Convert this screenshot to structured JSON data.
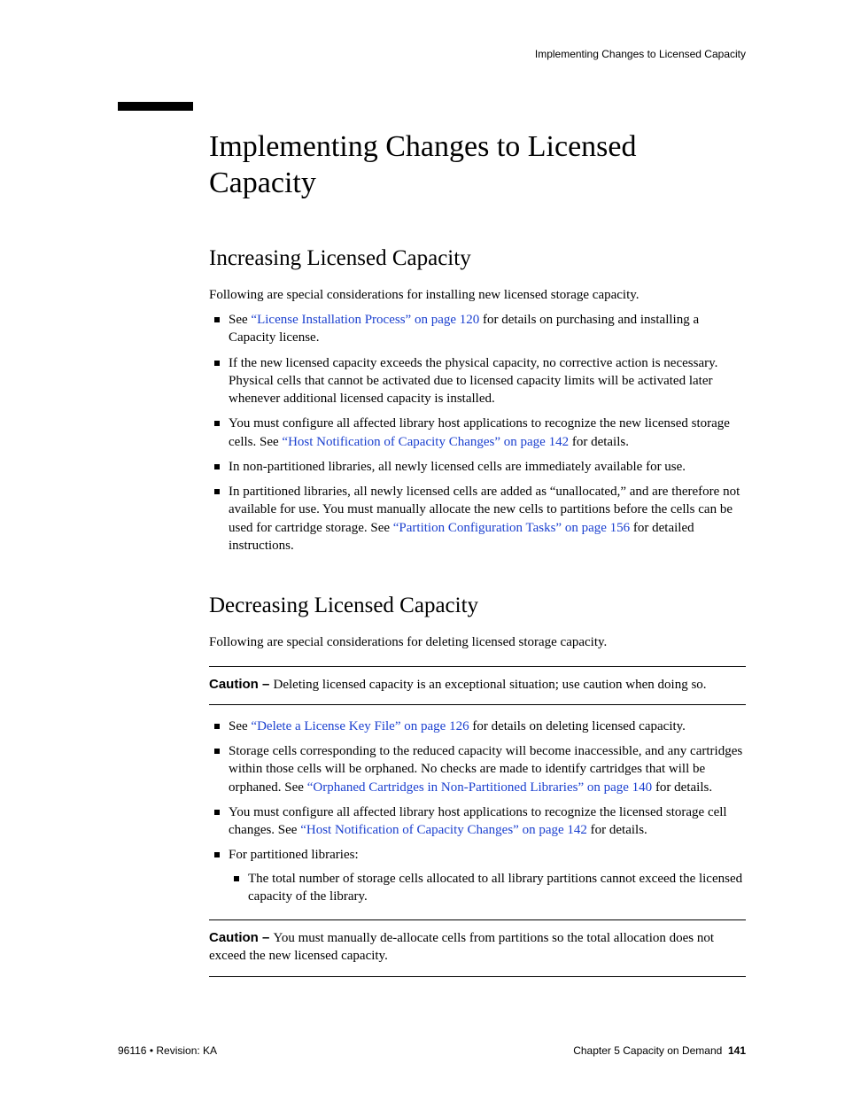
{
  "runningHead": "Implementing Changes to Licensed Capacity",
  "title": "Implementing Changes to Licensed Capacity",
  "sections": {
    "increase": {
      "heading": "Increasing Licensed Capacity",
      "intro": "Following are special considerations for installing new licensed storage capacity.",
      "bullets": {
        "b1_pre": "See ",
        "b1_link": "“License Installation Process” on page 120",
        "b1_post": " for details on purchasing and installing a Capacity license.",
        "b2": "If the new licensed capacity exceeds the physical capacity, no corrective action is necessary. Physical cells that cannot be activated due to licensed capacity limits will be activated later whenever additional licensed capacity is installed.",
        "b3_pre": "You must configure all affected library host applications to recognize the new licensed storage cells. See ",
        "b3_link": "“Host Notification of Capacity Changes” on page 142",
        "b3_post": " for details.",
        "b4": "In non-partitioned libraries, all newly licensed cells are immediately available for use.",
        "b5_pre": "In partitioned libraries, all newly licensed cells are added as “unallocated,” and are therefore not available for use. You must manually allocate the new cells to partitions before the cells can be used for cartridge storage. See ",
        "b5_link": "“Partition Configuration Tasks” on page 156",
        "b5_post": " for detailed instructions."
      }
    },
    "decrease": {
      "heading": "Decreasing Licensed Capacity",
      "intro": "Following are special considerations for deleting licensed storage capacity.",
      "caution1_label": "Caution – ",
      "caution1_text": "Deleting licensed capacity is an exceptional situation; use caution when doing so.",
      "bullets": {
        "b1_pre": "See ",
        "b1_link": "“Delete a License Key File” on page 126",
        "b1_post": " for details on deleting licensed capacity.",
        "b2_pre": "Storage cells corresponding to the reduced capacity will become inaccessible, and any cartridges within those cells will be orphaned. No checks are made to identify cartridges that will be orphaned. See ",
        "b2_link": "“Orphaned Cartridges in Non-Partitioned Libraries” on page 140",
        "b2_post": " for details.",
        "b3_pre": "You must configure all affected library host applications to recognize the licensed storage cell changes. See ",
        "b3_link": "“Host Notification of Capacity Changes” on page 142",
        "b3_post": " for details.",
        "b4": "For partitioned libraries:",
        "b4_sub1": "The total number of storage cells allocated to all library partitions cannot exceed the licensed capacity of the library."
      },
      "caution2_label": "Caution – ",
      "caution2_text": "You must manually de-allocate cells from partitions so the total allocation does not exceed the new licensed capacity."
    }
  },
  "footer": {
    "left": "96116 • Revision: KA",
    "right_text": "Chapter 5 Capacity on Demand",
    "page": "141"
  }
}
